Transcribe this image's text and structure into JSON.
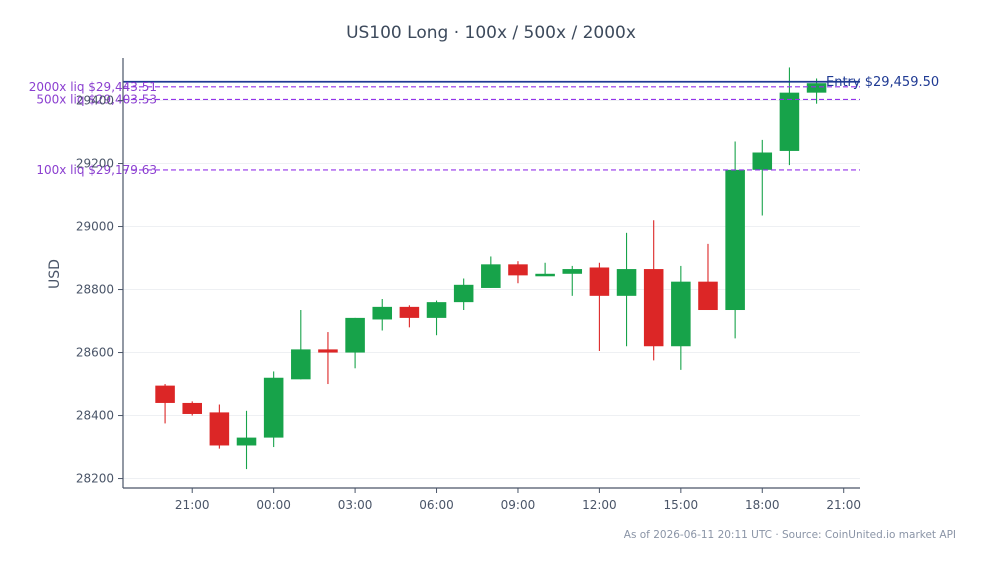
{
  "chart_data": {
    "type": "candlestick",
    "title": "US100 Long · 100x / 500x / 2000x",
    "ylabel": "USD",
    "xlabel": "",
    "ylim": [
      28170,
      29535
    ],
    "grid": true,
    "y_ticks": [
      28200,
      28400,
      28600,
      28800,
      29000,
      29200,
      29400
    ],
    "y_tick_labels": [
      "28200",
      "28400",
      "28600",
      "28800",
      "29000",
      "29200",
      "29400"
    ],
    "x_ticks": [
      "21:00",
      "00:00",
      "03:00",
      "06:00",
      "09:00",
      "12:00",
      "15:00",
      "18:00",
      "21:00"
    ],
    "x_tick_positions_hours": [
      1,
      4,
      7,
      10,
      13,
      16,
      19,
      22,
      25
    ],
    "x_range_hours": [
      -1.55,
      25.6
    ],
    "candles": [
      {
        "t": 19,
        "o": 28495,
        "h": 28500,
        "l": 28375,
        "c": 28440
      },
      {
        "t": 20,
        "o": 28440,
        "h": 28445,
        "l": 28400,
        "c": 28405
      },
      {
        "t": 21,
        "o": 28410,
        "h": 28435,
        "l": 28295,
        "c": 28305
      },
      {
        "t": 22,
        "o": 28305,
        "h": 28415,
        "l": 28230,
        "c": 28330
      },
      {
        "t": 23,
        "o": 28330,
        "h": 28540,
        "l": 28300,
        "c": 28520
      },
      {
        "t": 24,
        "o": 28515,
        "h": 28735,
        "l": 28515,
        "c": 28610
      },
      {
        "t": 25,
        "o": 28610,
        "h": 28665,
        "l": 28500,
        "c": 28600
      },
      {
        "t": 26,
        "o": 28600,
        "h": 28710,
        "l": 28550,
        "c": 28710
      },
      {
        "t": 27,
        "o": 28705,
        "h": 28770,
        "l": 28670,
        "c": 28745
      },
      {
        "t": 28,
        "o": 28745,
        "h": 28750,
        "l": 28680,
        "c": 28710
      },
      {
        "t": 29,
        "o": 28710,
        "h": 28765,
        "l": 28655,
        "c": 28760
      },
      {
        "t": 30,
        "o": 28760,
        "h": 28835,
        "l": 28735,
        "c": 28815
      },
      {
        "t": 31,
        "o": 28805,
        "h": 28905,
        "l": 28805,
        "c": 28880
      },
      {
        "t": 32,
        "o": 28880,
        "h": 28890,
        "l": 28820,
        "c": 28845
      },
      {
        "t": 33,
        "o": 28845,
        "h": 28885,
        "l": 28845,
        "c": 28850
      },
      {
        "t": 34,
        "o": 28850,
        "h": 28875,
        "l": 28780,
        "c": 28865
      },
      {
        "t": 35,
        "o": 28870,
        "h": 28885,
        "l": 28605,
        "c": 28780
      },
      {
        "t": 36,
        "o": 28780,
        "h": 28980,
        "l": 28620,
        "c": 28865
      },
      {
        "t": 37,
        "o": 28865,
        "h": 29020,
        "l": 28575,
        "c": 28620
      },
      {
        "t": 38,
        "o": 28620,
        "h": 28875,
        "l": 28545,
        "c": 28825
      },
      {
        "t": 39,
        "o": 28825,
        "h": 28945,
        "l": 28735,
        "c": 28735
      },
      {
        "t": 40,
        "o": 28735,
        "h": 29270,
        "l": 28645,
        "c": 29180
      },
      {
        "t": 41,
        "o": 29180,
        "h": 29275,
        "l": 29035,
        "c": 29235
      },
      {
        "t": 42,
        "o": 29240,
        "h": 29505,
        "l": 29195,
        "c": 29425
      },
      {
        "t": 43,
        "o": 29425,
        "h": 29470,
        "l": 29390,
        "c": 29455
      }
    ],
    "entry": {
      "value": 29459.5,
      "label": "Entry $29,459.50",
      "color": "#1f3a93"
    },
    "liquidations": [
      {
        "value": 29443.51,
        "label": "2000x liq $29,443.51"
      },
      {
        "value": 29403.53,
        "label": "500x liq $29,403.53"
      },
      {
        "value": 29179.63,
        "label": "100x liq $29,179.63"
      }
    ],
    "colors": {
      "up": "#17a34a",
      "down": "#dc2626",
      "liq": "#9333ea",
      "liq_text": "#8b3fd0",
      "axis": "#4a5568",
      "grid": "#eef0f3"
    }
  },
  "footer": "As of 2026-06-11 20:11 UTC · Source: CoinUnited.io market API"
}
